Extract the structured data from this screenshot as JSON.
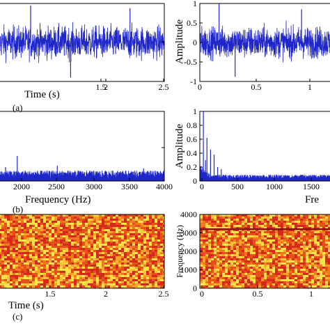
{
  "chart_data": [
    {
      "id": "a-left",
      "type": "line",
      "xlabel": "Time (s)",
      "ylabel": "",
      "xlim": [
        1.05,
        2.5
      ],
      "ylim": [
        -1,
        1
      ],
      "xticks": [
        "1.5",
        "2",
        "2.5"
      ],
      "yticks": [],
      "caption": "(a)",
      "signal": {
        "kind": "noise",
        "amplitude": 0.42,
        "spikes": [
          [
            1.33,
            0.95
          ],
          [
            1.68,
            -0.9
          ],
          [
            2.2,
            0.88
          ]
        ]
      }
    },
    {
      "id": "a-right",
      "type": "line",
      "xlabel": "",
      "ylabel": "Amplitude",
      "xlim": [
        0,
        1.3
      ],
      "ylim": [
        -1,
        1
      ],
      "xticks": [
        "0",
        "0.5",
        "1"
      ],
      "yticks": [
        "-1",
        "-0.5",
        "0",
        "0.5",
        "1"
      ],
      "caption": "",
      "signal": {
        "kind": "noise",
        "amplitude": 0.4,
        "spikes": [
          [
            0.18,
            1.0
          ],
          [
            0.95,
            0.85
          ],
          [
            0.33,
            -0.88
          ]
        ]
      }
    },
    {
      "id": "b-left",
      "type": "line",
      "xlabel": "Frequency (Hz)",
      "ylabel": "",
      "xlim": [
        1600,
        4000
      ],
      "ylim": [
        0,
        1
      ],
      "xticks": [
        "2000",
        "2500",
        "3000",
        "3500",
        "4000"
      ],
      "yticks": [],
      "caption": "(b)",
      "signal": {
        "kind": "spectrum",
        "floor": 0.1,
        "spikes": [
          [
            1870,
            0.36
          ],
          [
            1700,
            0.2
          ],
          [
            2450,
            0.22
          ],
          [
            3700,
            0.18
          ]
        ]
      }
    },
    {
      "id": "b-right",
      "type": "line",
      "xlabel": "Fre",
      "ylabel": "Amplitude",
      "xlim": [
        0,
        1950
      ],
      "ylim": [
        0,
        1
      ],
      "xticks": [
        "0",
        "500",
        "1000",
        "1500"
      ],
      "yticks": [
        "0",
        "0.2",
        "0.4",
        "0.6",
        "0.8",
        "1"
      ],
      "caption": "",
      "signal": {
        "kind": "spectrum",
        "floor": 0.06,
        "spikes": [
          [
            50,
            1.0
          ],
          [
            100,
            0.62
          ],
          [
            150,
            0.45
          ],
          [
            200,
            0.38
          ],
          [
            250,
            0.2
          ],
          [
            300,
            0.17
          ],
          [
            80,
            0.3
          ]
        ]
      }
    },
    {
      "id": "c-left",
      "type": "heatmap",
      "xlabel": "Time (s)",
      "ylabel": "",
      "xlim": [
        1.05,
        2.5
      ],
      "ylim": [
        0,
        4000
      ],
      "xticks": [
        "1.5",
        "2",
        "2.5"
      ],
      "yticks": [],
      "caption": "(c)",
      "palette": [
        "#d42a1e",
        "#e8501a",
        "#f07a1e",
        "#f8a02a",
        "#fcc436",
        "#fee24a"
      ],
      "line_at": null
    },
    {
      "id": "c-right",
      "type": "heatmap",
      "xlabel": "",
      "ylabel": "Frequency (Hz)",
      "xlim": [
        0,
        1.3
      ],
      "ylim": [
        0,
        4000
      ],
      "xticks": [
        "0",
        "0.5",
        "1"
      ],
      "yticks": [
        "0",
        "1000",
        "2000",
        "3000",
        "4000"
      ],
      "caption": "",
      "palette": [
        "#d42a1e",
        "#e8501a",
        "#f07a1e",
        "#f8a02a",
        "#fcc436",
        "#fee24a"
      ],
      "line_at": 3200
    }
  ],
  "colors": {
    "signal": "#1f27c8",
    "axis": "#000000",
    "spectral_line": "#8a0f0f"
  }
}
